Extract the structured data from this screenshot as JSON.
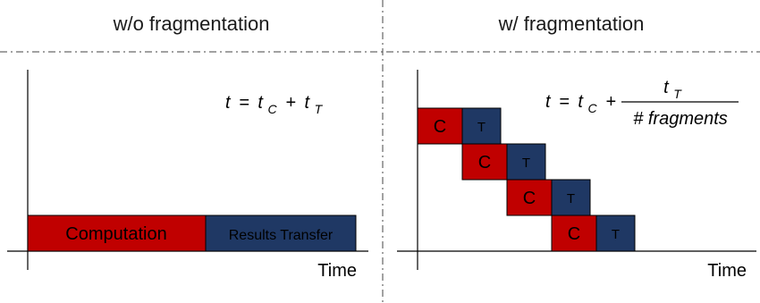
{
  "left_panel": {
    "heading": "w/o fragmentation",
    "axis_label": "Time",
    "equation": {
      "lhs": "t",
      "equals": "=",
      "term1": "t",
      "term1_sub": "C",
      "plus": "+",
      "term2": "t",
      "term2_sub": "T"
    },
    "bars": {
      "computation_label": "Computation",
      "transfer_label": "Results Transfer"
    }
  },
  "right_panel": {
    "heading": "w/ fragmentation",
    "axis_label": "Time",
    "equation": {
      "lhs": "t",
      "equals": "=",
      "term1": "t",
      "term1_sub": "C",
      "plus": "+",
      "numerator": "t",
      "numerator_sub": "T",
      "denominator": "# fragments"
    },
    "fragments": [
      {
        "c_label": "C",
        "t_label": "T"
      },
      {
        "c_label": "C",
        "t_label": "T"
      },
      {
        "c_label": "C",
        "t_label": "T"
      },
      {
        "c_label": "C",
        "t_label": "T"
      }
    ]
  },
  "colors": {
    "computation": "#c00000",
    "transfer": "#1f3864",
    "outline": "#000000",
    "divider": "#444444"
  }
}
